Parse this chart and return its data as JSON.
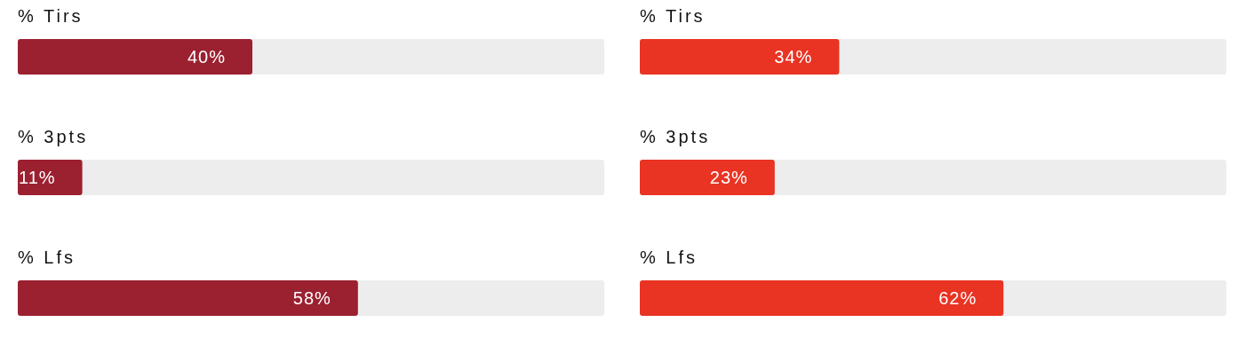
{
  "chart_data": [
    {
      "type": "bar",
      "orientation": "horizontal",
      "categories": [
        "% Tirs",
        "% 3pts",
        "% Lfs"
      ],
      "values": [
        40,
        11,
        58
      ],
      "value_labels": [
        "40%",
        "11%",
        "58%"
      ],
      "color": "#9b2030",
      "xlim": [
        0,
        100
      ],
      "tick_labels": "y",
      "grid": false,
      "legend": false
    },
    {
      "type": "bar",
      "orientation": "horizontal",
      "categories": [
        "% Tirs",
        "% 3pts",
        "% Lfs"
      ],
      "values": [
        34,
        23,
        62
      ],
      "value_labels": [
        "34%",
        "23%",
        "62%"
      ],
      "color": "#e93323",
      "xlim": [
        0,
        100
      ],
      "tick_labels": "y",
      "grid": false,
      "legend": false
    }
  ]
}
